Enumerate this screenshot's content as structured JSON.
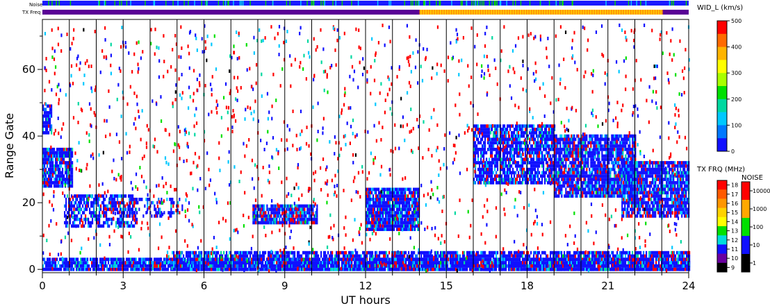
{
  "strip_labels": {
    "noise": "Noise",
    "txfreq": "TX Freq"
  },
  "chart_data": {
    "type": "heatmap",
    "xlabel": "UT hours",
    "ylabel": "Range Gate",
    "xlim": [
      0,
      24
    ],
    "ylim": [
      -1,
      75
    ],
    "xticks": [
      "0",
      "3",
      "6",
      "9",
      "12",
      "15",
      "18",
      "21",
      "24"
    ],
    "yticks": [
      "0",
      "20",
      "40",
      "60"
    ],
    "grid": "vertical lines at each hour",
    "colorbar_width": {
      "label": "WID_L (km/s)",
      "ticks": [
        "500",
        "400",
        "300",
        "200",
        "100",
        "0"
      ],
      "colors": [
        "#ff0000",
        "#ff6a00",
        "#ffb400",
        "#ffff00",
        "#a8ff00",
        "#00e000",
        "#00d8a0",
        "#00c8ff",
        "#0078ff",
        "#1010ff"
      ]
    },
    "colorbar_txfreq": {
      "label": "TX FRQ (MHz)",
      "ticks": [
        "18",
        "17",
        "16",
        "15",
        "14",
        "13",
        "12",
        "11",
        "10",
        "9"
      ],
      "colors": [
        "#ff0000",
        "#ff5a00",
        "#ff9600",
        "#ffd200",
        "#ffff00",
        "#00e000",
        "#00dcdc",
        "#1010ff",
        "#6a00a0",
        "#000000"
      ]
    },
    "colorbar_noise": {
      "label": "NOISE",
      "ticks": [
        "10000",
        "1000",
        "100",
        "10",
        "1"
      ],
      "colors": [
        "#ff0000",
        "#ffa800",
        "#00e000",
        "#1010ff",
        "#000000"
      ]
    },
    "txfreq_strip": [
      {
        "from": 0,
        "to": 14,
        "color": "#5a0096"
      },
      {
        "from": 14,
        "to": 23,
        "color": "#ffc800"
      },
      {
        "from": 23,
        "to": 24,
        "color": "#5a0096"
      }
    ],
    "scatter_blobs": [
      {
        "t0": 0.0,
        "t1": 1.1,
        "g0": 25,
        "g1": 36,
        "density": 0.9
      },
      {
        "t0": 0.0,
        "t1": 0.35,
        "g0": 41,
        "g1": 49,
        "density": 0.8
      },
      {
        "t0": 0.8,
        "t1": 3.5,
        "g0": 13,
        "g1": 22,
        "density": 0.65
      },
      {
        "t0": 3.0,
        "t1": 5.2,
        "g0": 16,
        "g1": 21,
        "density": 0.35
      },
      {
        "t0": 7.8,
        "t1": 10.2,
        "g0": 14,
        "g1": 19,
        "density": 0.9
      },
      {
        "t0": 12.0,
        "t1": 14.0,
        "g0": 12,
        "g1": 24,
        "density": 0.95
      },
      {
        "t0": 16.0,
        "t1": 19.0,
        "g0": 26,
        "g1": 43,
        "density": 0.8
      },
      {
        "t0": 19.0,
        "t1": 22.0,
        "g0": 22,
        "g1": 40,
        "density": 0.85
      },
      {
        "t0": 21.5,
        "t1": 24.0,
        "g0": 16,
        "g1": 32,
        "density": 0.85
      },
      {
        "t0": 0.0,
        "t1": 24.0,
        "g0": 0,
        "g1": 3,
        "density": 0.9
      },
      {
        "t0": 4.8,
        "t1": 24.0,
        "g0": 0,
        "g1": 5,
        "density": 0.8
      }
    ]
  }
}
